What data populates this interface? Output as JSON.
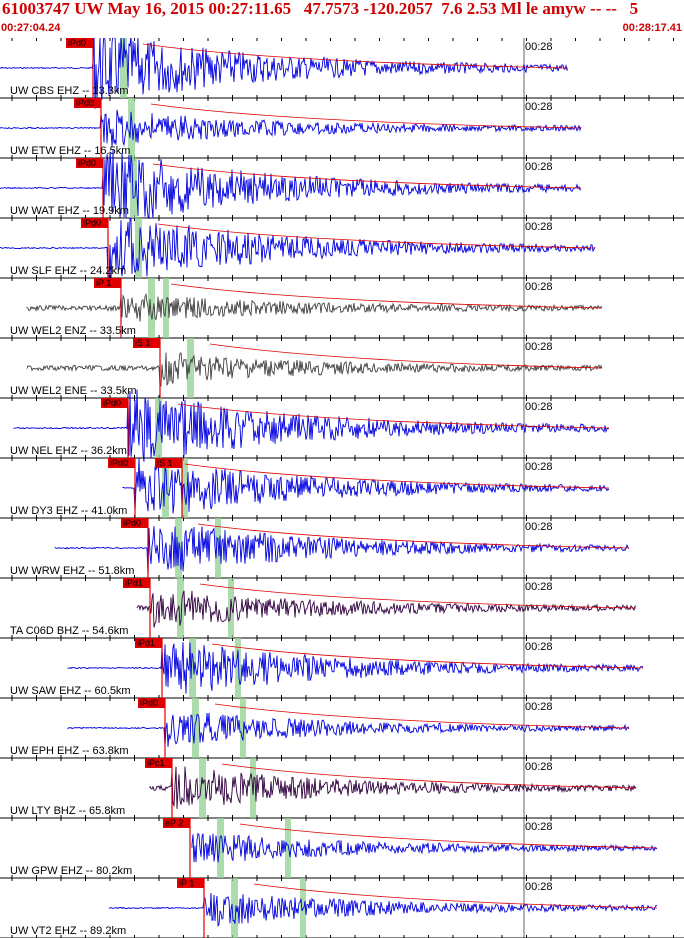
{
  "header": {
    "title": "61003747 UW May 16, 2015 00:27:11.65   47.7573 -120.2057  7.6 2.53 Ml le amyw -- --   5",
    "start_time": "00:27:04.24",
    "end_time": "00:28:17.41",
    "minute_label": "00:28"
  },
  "colors": {
    "title": "#d00000",
    "trace_vertical": "#0000e0",
    "trace_enz": "#404040",
    "trace_bhz": "#300040",
    "pick": "#e00000",
    "theory_band": "#90d090"
  },
  "traces": [
    {
      "label": "UW CBS EHZ -- 13.3km",
      "pick": "iPd0",
      "pick2": "",
      "color": "blue",
      "amp": 1.0,
      "start": 0.0,
      "end": 0.83
    },
    {
      "label": "UW ETW EHZ -- 16.5km",
      "pick": "iPd0",
      "pick2": "",
      "color": "blue",
      "amp": 0.45,
      "start": 0.0,
      "end": 0.85
    },
    {
      "label": "UW WAT EHZ -- 19.9km",
      "pick": "iPd0",
      "pick2": "",
      "color": "blue",
      "amp": 1.0,
      "start": 0.0,
      "end": 0.85
    },
    {
      "label": "UW SLF EHZ -- 24.2km",
      "pick": "iPd0",
      "pick2": "",
      "color": "blue",
      "amp": 0.9,
      "start": 0.0,
      "end": 0.87
    },
    {
      "label": "UW WEL2 ENZ -- 33.5km",
      "pick": "iP 1",
      "pick2": "",
      "color": "gray",
      "amp": 0.35,
      "start": 0.04,
      "end": 0.88
    },
    {
      "label": "UW WEL2 ENE -- 33.5km",
      "pick": "iS 1",
      "pick2": "",
      "color": "gray",
      "amp": 0.4,
      "start": 0.04,
      "end": 0.88
    },
    {
      "label": "UW NEL EHZ -- 36.2km",
      "pick": "iPd0",
      "pick2": "",
      "color": "blue",
      "amp": 1.0,
      "start": 0.02,
      "end": 0.89
    },
    {
      "label": "UW DY3 EHZ -- 41.0km",
      "pick": "iPd0",
      "pick2": "iS 1",
      "color": "blue",
      "amp": 0.8,
      "start": 0.18,
      "end": 0.89
    },
    {
      "label": "UW WRW EHZ -- 51.8km",
      "pick": "iPd0",
      "pick2": "",
      "color": "blue",
      "amp": 0.7,
      "start": 0.08,
      "end": 0.92
    },
    {
      "label": "TA C06D BHZ -- 54.6km",
      "pick": "iPd1",
      "pick2": "",
      "color": "purple",
      "amp": 0.5,
      "start": 0.2,
      "end": 0.93
    },
    {
      "label": "UW SAW EHZ -- 60.5km",
      "pick": "iPd1",
      "pick2": "",
      "color": "blue",
      "amp": 0.75,
      "start": 0.1,
      "end": 0.94
    },
    {
      "label": "UW EPH EHZ -- 63.8km",
      "pick": "iPd0",
      "pick2": "",
      "color": "blue",
      "amp": 0.45,
      "start": 0.1,
      "end": 0.92
    },
    {
      "label": "UW LTY BHZ -- 65.8km",
      "pick": "iPc1",
      "pick2": "",
      "color": "purple",
      "amp": 0.55,
      "start": 0.22,
      "end": 0.93
    },
    {
      "label": "UW GPW EHZ -- 80.2km",
      "pick": "eP 2",
      "pick2": "",
      "color": "blue",
      "amp": 0.4,
      "start": 0.28,
      "end": 0.96
    },
    {
      "label": "UW VT2 EHZ -- 89.2km",
      "pick": "iP 1",
      "pick2": "",
      "color": "blue",
      "amp": 0.45,
      "start": 0.16,
      "end": 0.96
    }
  ]
}
